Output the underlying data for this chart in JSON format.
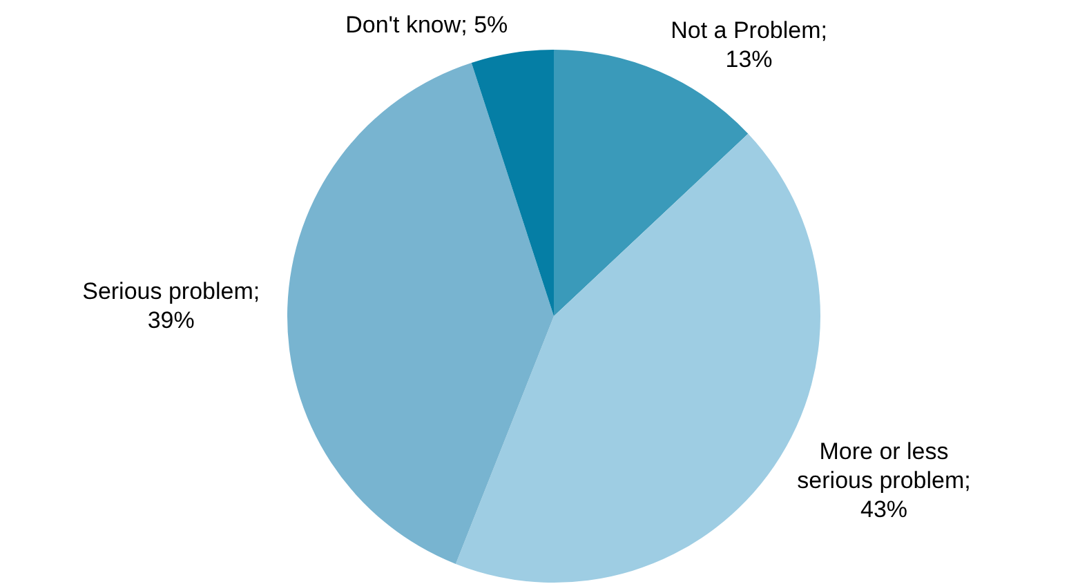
{
  "chart_data": {
    "type": "pie",
    "categories": [
      "Not a Problem",
      "More or less serious problem",
      "Serious problem",
      "Don't know"
    ],
    "values": [
      13,
      43,
      39,
      5
    ],
    "value_labels": [
      "; 13%",
      "; 43%",
      "; 39%",
      "; 5%"
    ],
    "colors": [
      "#3a9aba",
      "#9ecde3",
      "#78b4d0",
      "#057ea5"
    ],
    "legend": false
  }
}
